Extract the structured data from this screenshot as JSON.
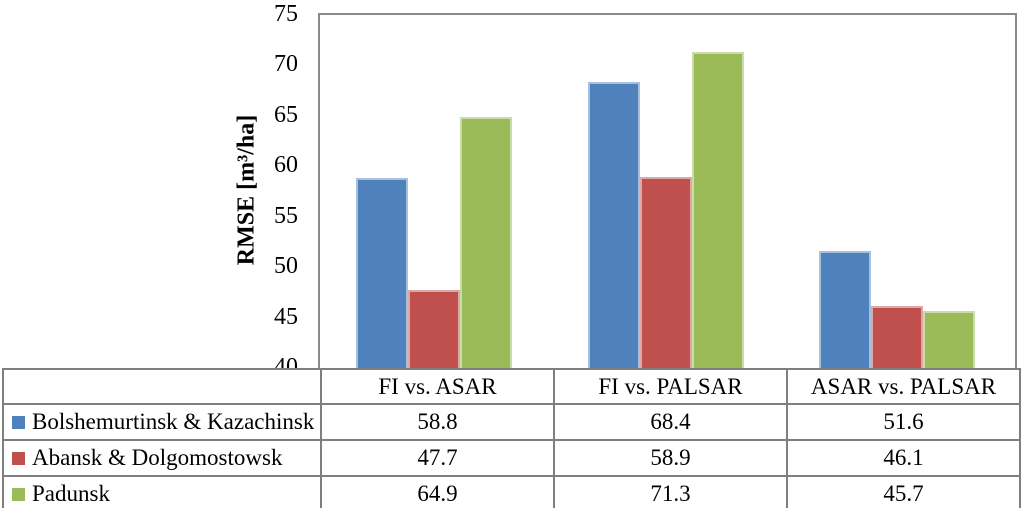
{
  "chart_data": {
    "type": "bar",
    "title": "",
    "ylabel": "RMSE [m³/ha]",
    "xlabel": "",
    "ylim": [
      40,
      75
    ],
    "yticks": [
      40,
      45,
      50,
      55,
      60,
      65,
      70,
      75
    ],
    "grid": false,
    "legend_position": "data-table-below-chart",
    "categories": [
      "FI vs. ASAR",
      "FI vs. PALSAR",
      "ASAR vs. PALSAR"
    ],
    "series": [
      {
        "name": "Bolshemurtinsk & Kazachinsk",
        "color": "#4f81bd",
        "border_color": "#a7c0de",
        "values": [
          58.8,
          68.4,
          51.6
        ]
      },
      {
        "name": "Abansk & Dolgomostowsk",
        "color": "#c0504d",
        "border_color": "#dca9a7",
        "values": [
          47.7,
          58.9,
          46.1
        ]
      },
      {
        "name": "Padunsk",
        "color": "#9bbb59",
        "border_color": "#cbdcab",
        "values": [
          64.9,
          71.3,
          45.7
        ]
      }
    ]
  },
  "colors": {
    "background": "#ffffff",
    "plot_border": "#8a8a8a",
    "table_border": "#7f7f7f",
    "text": "#000000"
  },
  "layout_note": "clustered column chart with attached data table serving as legend"
}
